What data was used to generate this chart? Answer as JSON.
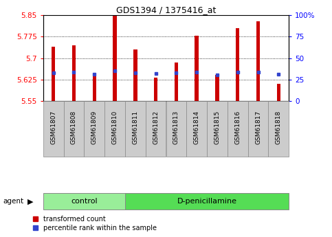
{
  "title": "GDS1394 / 1375416_at",
  "samples": [
    "GSM61807",
    "GSM61808",
    "GSM61809",
    "GSM61810",
    "GSM61811",
    "GSM61812",
    "GSM61813",
    "GSM61814",
    "GSM61815",
    "GSM61816",
    "GSM61817",
    "GSM61818"
  ],
  "bar_values": [
    5.74,
    5.745,
    5.635,
    5.85,
    5.73,
    5.632,
    5.685,
    5.778,
    5.64,
    5.805,
    5.83,
    5.61
  ],
  "dot_values": [
    5.648,
    5.65,
    5.643,
    5.655,
    5.648,
    5.645,
    5.648,
    5.65,
    5.642,
    5.65,
    5.65,
    5.644
  ],
  "bar_color": "#cc0000",
  "dot_color": "#3344cc",
  "ymin": 5.55,
  "ymax": 5.85,
  "y2min": 0,
  "y2max": 100,
  "yticks": [
    5.55,
    5.625,
    5.7,
    5.775,
    5.85
  ],
  "ytick_labels": [
    "5.55",
    "5.625",
    "5.7",
    "5.775",
    "5.85"
  ],
  "y2ticks": [
    0,
    25,
    50,
    75,
    100
  ],
  "y2tick_labels": [
    "0",
    "25",
    "50",
    "75",
    "100%"
  ],
  "grid_lines": [
    5.625,
    5.7,
    5.775
  ],
  "groups": [
    {
      "label": "control",
      "start": 0,
      "end": 4,
      "color": "#99ee99"
    },
    {
      "label": "D-penicillamine",
      "start": 4,
      "end": 12,
      "color": "#55dd55"
    }
  ],
  "agent_label": "agent",
  "legend": [
    {
      "label": "transformed count",
      "color": "#cc0000"
    },
    {
      "label": "percentile rank within the sample",
      "color": "#3344cc"
    }
  ],
  "bg_color": "#ffffff",
  "plot_bg": "#ffffff",
  "bar_width": 0.18,
  "label_color": "#cccccc",
  "group_color_border": "#888888"
}
